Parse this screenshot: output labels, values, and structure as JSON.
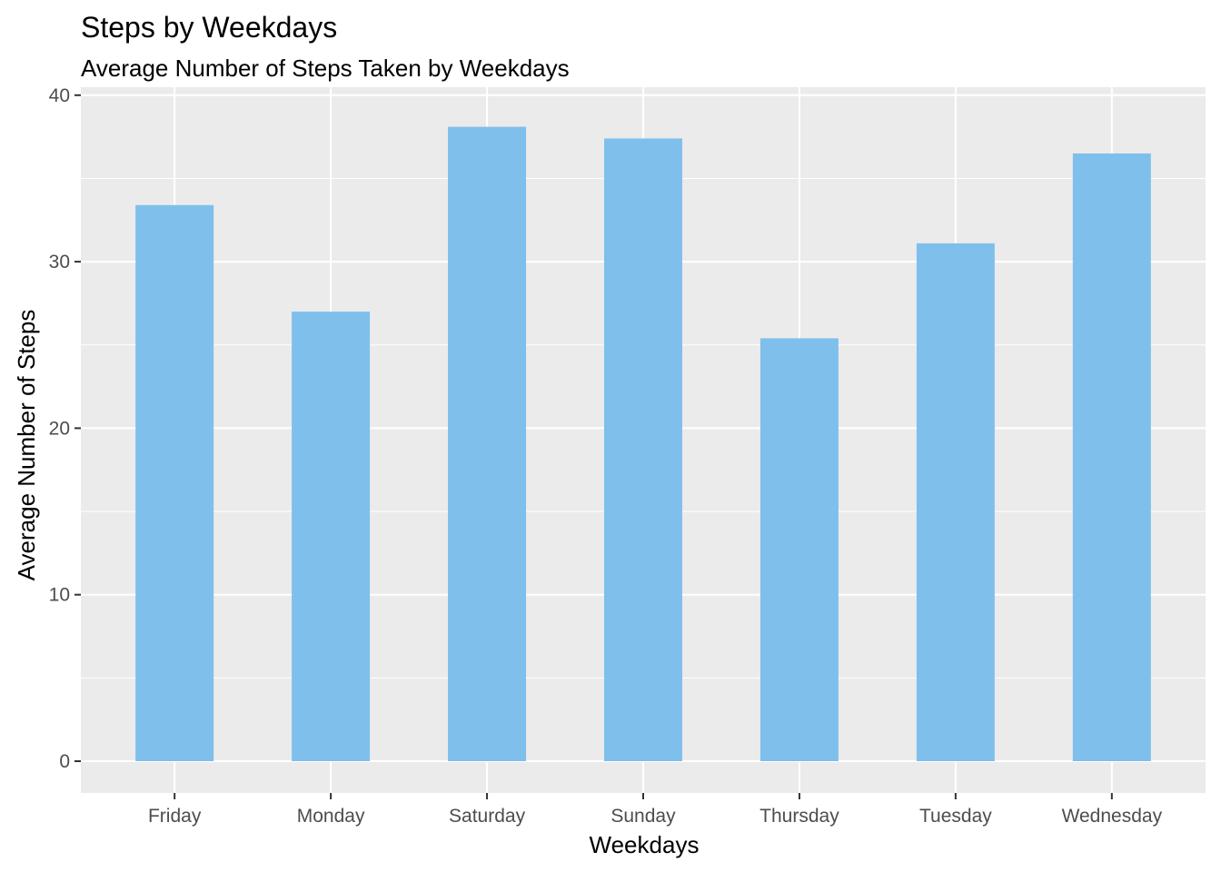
{
  "chart_data": {
    "type": "bar",
    "title": "Steps by Weekdays",
    "subtitle": "Average Number of Steps Taken by Weekdays",
    "xlabel": "Weekdays",
    "ylabel": "Average Number of Steps",
    "categories": [
      "Friday",
      "Monday",
      "Saturday",
      "Sunday",
      "Thursday",
      "Tuesday",
      "Wednesday"
    ],
    "values": [
      33.4,
      27.0,
      38.1,
      37.4,
      25.4,
      31.1,
      36.5
    ],
    "ylim": [
      -1.9,
      40
    ],
    "yticks": [
      0,
      10,
      20,
      30,
      40
    ],
    "grid": true,
    "bar_color": "#7fbfec",
    "panel_color": "#ebebeb"
  }
}
